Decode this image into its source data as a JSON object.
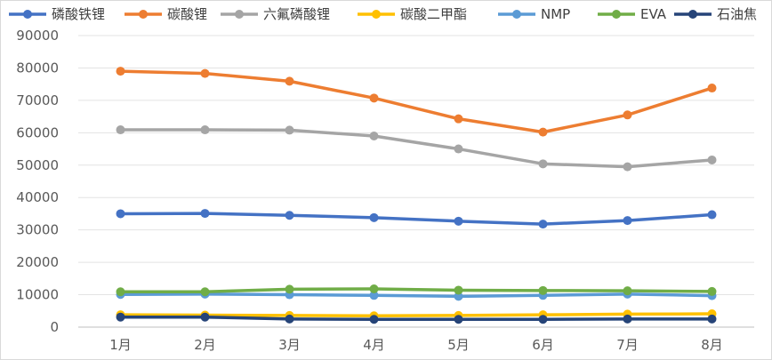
{
  "chart_data": {
    "type": "line",
    "categories": [
      "1月",
      "2月",
      "3月",
      "4月",
      "5月",
      "6月",
      "7月",
      "8月"
    ],
    "ylim": [
      0,
      90000
    ],
    "yticks": [
      0,
      10000,
      20000,
      30000,
      40000,
      50000,
      60000,
      70000,
      80000,
      90000
    ],
    "grid": true,
    "legend": "top",
    "series": [
      {
        "name": "磷酸铁锂",
        "color": "#4472C4",
        "values": [
          35000,
          35100,
          34500,
          33800,
          32700,
          31800,
          32900,
          34700
        ]
      },
      {
        "name": "碳酸锂",
        "color": "#ED7D31",
        "values": [
          79000,
          78300,
          75900,
          70700,
          64300,
          60200,
          65500,
          73800
        ]
      },
      {
        "name": "六氟磷酸锂",
        "color": "#A5A5A5",
        "values": [
          60900,
          60900,
          60800,
          59000,
          55000,
          50400,
          49500,
          51600
        ]
      },
      {
        "name": "碳酸二甲酯",
        "color": "#FFC000",
        "values": [
          3800,
          3700,
          3600,
          3500,
          3600,
          3800,
          4000,
          4100
        ]
      },
      {
        "name": "NMP",
        "color": "#5B9BD5",
        "values": [
          10100,
          10200,
          10000,
          9800,
          9500,
          9800,
          10200,
          9700
        ]
      },
      {
        "name": "EVA",
        "color": "#70AD47",
        "values": [
          10900,
          10900,
          11700,
          11800,
          11400,
          11300,
          11200,
          11000
        ]
      },
      {
        "name": "石油焦",
        "color": "#264478",
        "values": [
          3100,
          3100,
          2500,
          2400,
          2400,
          2400,
          2500,
          2500
        ]
      }
    ]
  }
}
